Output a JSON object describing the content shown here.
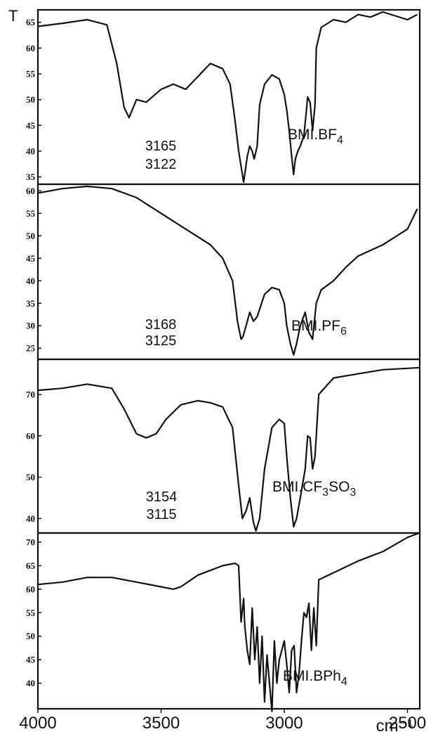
{
  "chart_data": {
    "type": "line",
    "ylabel": "T",
    "xlabel": "cm⁻¹",
    "x_ticks": [
      4000,
      3500,
      3000,
      2500
    ],
    "x_range": [
      4000,
      2450
    ],
    "x_reversed": true,
    "line_color": "#111111",
    "panels": [
      {
        "compound": {
          "main": "BMI.BF",
          "sub": "4"
        },
        "peak_labels": [
          "3165",
          "3122"
        ],
        "ylim": [
          34,
          67
        ],
        "y_ticks": [
          35,
          40,
          45,
          50,
          55,
          60,
          65
        ],
        "series": [
          {
            "x": [
              4000,
              3900,
              3800,
              3720,
              3680,
              3650,
              3630,
              3600,
              3560,
              3500,
              3450,
              3400,
              3300,
              3250,
              3220,
              3200,
              3185,
              3170,
              3165,
              3150,
              3140,
              3130,
              3122,
              3110,
              3100,
              3080,
              3050,
              3020,
              3000,
              2990,
              2980,
              2970,
              2962,
              2955,
              2945,
              2935,
              2920,
              2910,
              2905,
              2895,
              2885,
              2875,
              2870,
              2850,
              2800,
              2750,
              2700,
              2650,
              2600,
              2500,
              2460
            ],
            "y": [
              64.2,
              64.8,
              65.5,
              64.5,
              57,
              48.5,
              46.5,
              50,
              49.5,
              52,
              53,
              52,
              57,
              56,
              53,
              46,
              40,
              35.5,
              34,
              39,
              41,
              40,
              38.5,
              41,
              49,
              53,
              54.8,
              54,
              51,
              48,
              44,
              39,
              35.5,
              38.5,
              40,
              41,
              43,
              48,
              50.5,
              49.5,
              44,
              49,
              60,
              64,
              65.5,
              65,
              66.5,
              66,
              67,
              65.5,
              66.5
            ]
          }
        ]
      },
      {
        "compound": {
          "main": "BMI.PF",
          "sub": "6"
        },
        "peak_labels": [
          "3168",
          "3125"
        ],
        "ylim": [
          23,
          61
        ],
        "y_ticks": [
          25,
          30,
          35,
          40,
          45,
          50,
          55,
          60
        ],
        "series": [
          {
            "x": [
              4000,
              3900,
              3800,
              3700,
              3600,
              3500,
              3400,
              3300,
              3250,
              3210,
              3190,
              3175,
              3168,
              3155,
              3140,
              3125,
              3110,
              3080,
              3050,
              3020,
              3000,
              2990,
              2975,
              2962,
              2950,
              2935,
              2915,
              2900,
              2885,
              2870,
              2850,
              2800,
              2750,
              2700,
              2600,
              2500,
              2460
            ],
            "y": [
              59.5,
              60.5,
              61,
              60.5,
              58.5,
              55,
              51.5,
              48,
              45,
              40,
              31,
              27,
              27.5,
              30,
              33,
              31,
              32,
              37,
              38.5,
              38,
              35,
              30,
              26,
              23.5,
              26,
              30,
              33,
              28.5,
              27,
              35,
              38,
              40,
              43,
              45.5,
              48,
              51.5,
              56
            ]
          }
        ]
      },
      {
        "compound": {
          "main": "BMI.CF",
          "sub": "3",
          "main2": "SO",
          "sub2": "3"
        },
        "peak_labels": [
          "3154",
          "3115"
        ],
        "ylim": [
          37,
          78
        ],
        "y_ticks": [
          40,
          50,
          60,
          70
        ],
        "series": [
          {
            "x": [
              4000,
              3900,
              3800,
              3700,
              3650,
              3600,
              3560,
              3520,
              3480,
              3420,
              3350,
              3300,
              3250,
              3210,
              3185,
              3170,
              3154,
              3140,
              3125,
              3115,
              3100,
              3080,
              3050,
              3020,
              3000,
              2990,
              2975,
              2962,
              2950,
              2935,
              2915,
              2905,
              2895,
              2885,
              2875,
              2860,
              2800,
              2700,
              2600,
              2450
            ],
            "y": [
              71,
              71.5,
              72.5,
              71.5,
              66.5,
              60.5,
              59.5,
              60.5,
              64,
              67.5,
              68.5,
              68,
              67,
              62,
              48,
              40,
              42,
              45,
              39,
              37,
              40,
              52,
              62,
              64,
              63,
              55,
              45,
              38,
              40,
              45,
              52,
              60,
              59.5,
              52,
              55,
              70,
              74,
              75,
              76,
              76.5
            ]
          }
        ]
      },
      {
        "compound": {
          "main": "BMI.BPh",
          "sub": "4"
        },
        "peak_labels": [],
        "ylim": [
          35,
          71.5
        ],
        "y_ticks": [
          40,
          45,
          50,
          55,
          60,
          65,
          70
        ],
        "series": [
          {
            "x": [
              4000,
              3900,
              3800,
              3700,
              3600,
              3500,
              3450,
              3420,
              3350,
              3250,
              3200,
              3185,
              3175,
              3165,
              3160,
              3150,
              3140,
              3130,
              3120,
              3110,
              3100,
              3090,
              3080,
              3070,
              3060,
              3050,
              3040,
              3030,
              3020,
              3010,
              3000,
              2990,
              2980,
              2970,
              2960,
              2950,
              2940,
              2930,
              2920,
              2910,
              2900,
              2890,
              2880,
              2870,
              2860,
              2800,
              2700,
              2600,
              2500,
              2450
            ],
            "y": [
              61,
              61.5,
              62.5,
              62.5,
              61.5,
              60.5,
              60,
              60.5,
              63,
              65,
              65.5,
              65,
              53,
              58,
              52,
              47,
              44,
              56,
              45,
              52,
              40,
              50,
              36,
              46,
              40,
              34,
              49,
              40,
              45,
              47,
              49,
              44,
              38,
              47,
              48,
              38,
              42,
              49,
              55,
              54,
              57,
              47,
              56,
              48,
              62,
              63.5,
              66,
              68,
              71,
              72
            ]
          }
        ]
      }
    ]
  }
}
